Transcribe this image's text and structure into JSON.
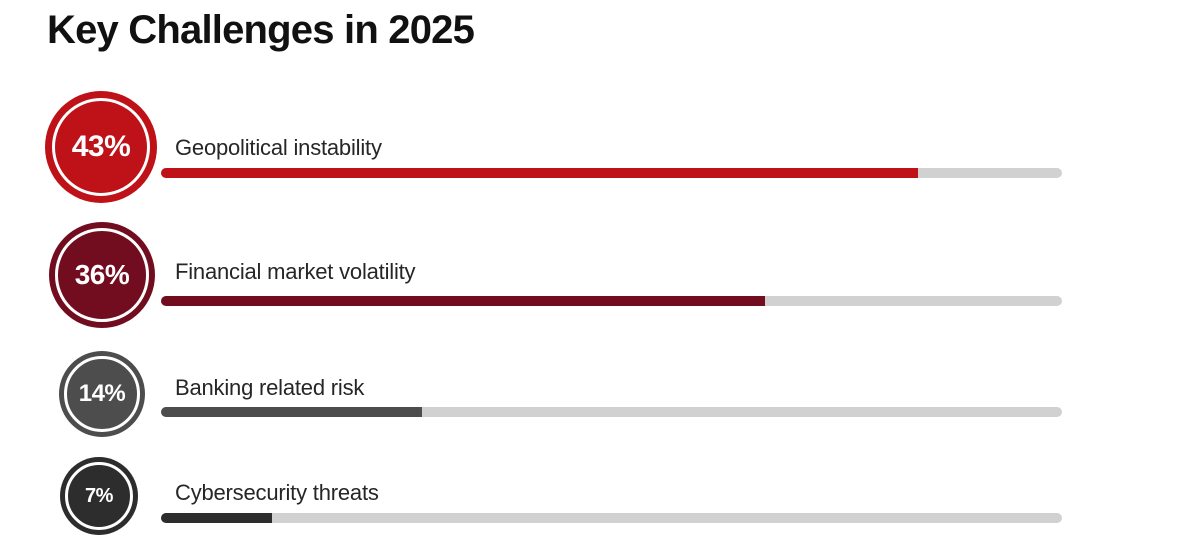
{
  "title": "Key Challenges in 2025",
  "chart_data": {
    "type": "bar",
    "title": "Key Challenges in 2025",
    "categories": [
      "Geopolitical instability",
      "Financial market volatility",
      "Banking related risk",
      "Cybersecurity threats"
    ],
    "values": [
      43,
      36,
      14,
      7
    ],
    "unit": "%",
    "xlim": [
      0,
      50
    ],
    "orientation": "horizontal",
    "grid": false,
    "legend": false,
    "bar_fill_percent_of_track": [
      84,
      67,
      29,
      12.3
    ],
    "bar_colors": [
      "#be1118",
      "#720d20",
      "#4d4d4d",
      "#2d2d2d"
    ],
    "track_color": "#d1d1d1"
  },
  "rows": [
    {
      "value": 43,
      "value_label": "43%",
      "label": "Geopolitical instability",
      "color": "#be1118",
      "fill_percent": 84
    },
    {
      "value": 36,
      "value_label": "36%",
      "label": "Financial market volatility",
      "color": "#720d20",
      "fill_percent": 67
    },
    {
      "value": 14,
      "value_label": "14%",
      "label": "Banking related risk",
      "color": "#4d4d4d",
      "fill_percent": 29
    },
    {
      "value": 7,
      "value_label": "7%",
      "label": "Cybersecurity threats",
      "color": "#2d2d2d",
      "fill_percent": 12.3
    }
  ]
}
